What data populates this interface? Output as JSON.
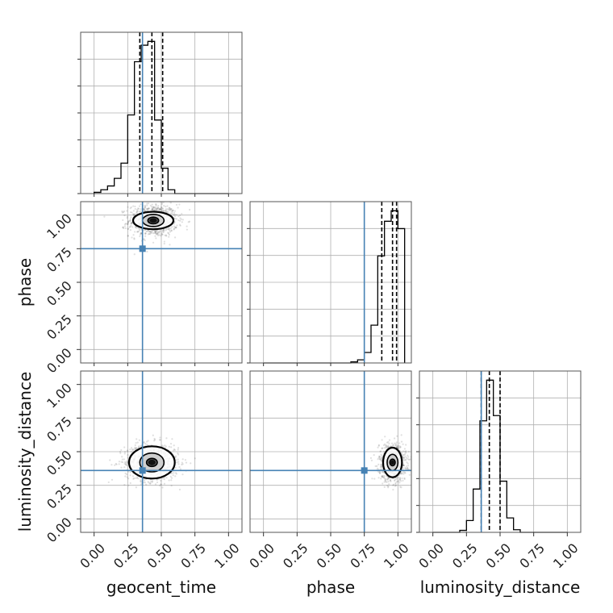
{
  "chart_data": {
    "type": "corner",
    "parameters": [
      "geocent_time",
      "phase",
      "luminosity_distance"
    ],
    "axis_labels": {
      "geocent_time": "geocent_time",
      "phase": "phase",
      "luminosity_distance": "luminosity_distance"
    },
    "range": [
      -0.1,
      1.1
    ],
    "ticks": [
      0.0,
      0.25,
      0.5,
      0.75,
      1.0
    ],
    "tick_labels": [
      "0.00",
      "0.25",
      "0.50",
      "0.75",
      "1.00"
    ],
    "grid": true,
    "truths": {
      "geocent_time": 0.36,
      "phase": 0.75,
      "luminosity_distance": 0.36
    },
    "truth_color": "#4682b4",
    "quantiles": {
      "geocent_time": [
        0.34,
        0.43,
        0.51
      ],
      "phase": [
        0.88,
        0.96,
        0.99
      ],
      "luminosity_distance": [
        0.36,
        0.42,
        0.5
      ]
    },
    "histograms": {
      "geocent_time": {
        "bin_edges": [
          0.0,
          0.05,
          0.1,
          0.15,
          0.2,
          0.25,
          0.3,
          0.35,
          0.4,
          0.45,
          0.5,
          0.55,
          0.6,
          0.65,
          0.7,
          0.75,
          0.8,
          0.85,
          0.9,
          0.95,
          1.0
        ],
        "counts": [
          1,
          3,
          6,
          12,
          24,
          62,
          104,
          117,
          120,
          58,
          20,
          3,
          0,
          0,
          0,
          0,
          0,
          0,
          0,
          0
        ]
      },
      "phase": {
        "bin_edges": [
          0.0,
          0.05,
          0.1,
          0.15,
          0.2,
          0.25,
          0.3,
          0.35,
          0.4,
          0.45,
          0.5,
          0.55,
          0.6,
          0.65,
          0.7,
          0.75,
          0.8,
          0.85,
          0.9,
          0.95,
          1.0,
          1.05
        ],
        "counts": [
          0,
          0,
          0,
          0,
          0,
          0,
          0,
          0,
          0,
          0,
          0,
          0,
          0,
          1,
          3,
          10,
          36,
          102,
          135,
          145,
          128
        ]
      },
      "luminosity_distance": {
        "bin_edges": [
          0.0,
          0.05,
          0.1,
          0.15,
          0.2,
          0.25,
          0.3,
          0.35,
          0.4,
          0.45,
          0.5,
          0.55,
          0.6,
          0.65,
          0.7,
          0.75,
          0.8,
          0.85,
          0.9,
          0.95,
          1.0
        ],
        "counts": [
          0,
          0,
          0,
          0,
          3,
          18,
          66,
          170,
          232,
          178,
          78,
          22,
          4,
          0,
          0,
          0,
          0,
          0,
          0,
          0
        ]
      }
    },
    "joint_panels": [
      {
        "x": "geocent_time",
        "y": "phase",
        "peak": [
          0.44,
          0.96
        ],
        "spread": [
          0.09,
          0.06
        ],
        "contour_levels": [
          {
            "rx": 0.04,
            "ry": 0.025
          },
          {
            "rx": 0.08,
            "ry": 0.045
          },
          {
            "rx": 0.15,
            "ry": 0.065
          }
        ]
      },
      {
        "x": "geocent_time",
        "y": "luminosity_distance",
        "peak": [
          0.43,
          0.42
        ],
        "spread": [
          0.1,
          0.07
        ],
        "contour_levels": [
          {
            "rx": 0.04,
            "ry": 0.03
          },
          {
            "rx": 0.09,
            "ry": 0.07
          },
          {
            "rx": 0.17,
            "ry": 0.12
          }
        ]
      },
      {
        "x": "phase",
        "y": "luminosity_distance",
        "peak": [
          0.96,
          0.42
        ],
        "spread": [
          0.05,
          0.07
        ],
        "contour_levels": [
          {
            "rx": 0.02,
            "ry": 0.025
          },
          {
            "rx": 0.04,
            "ry": 0.06
          },
          {
            "rx": 0.07,
            "ry": 0.11
          }
        ]
      }
    ]
  }
}
